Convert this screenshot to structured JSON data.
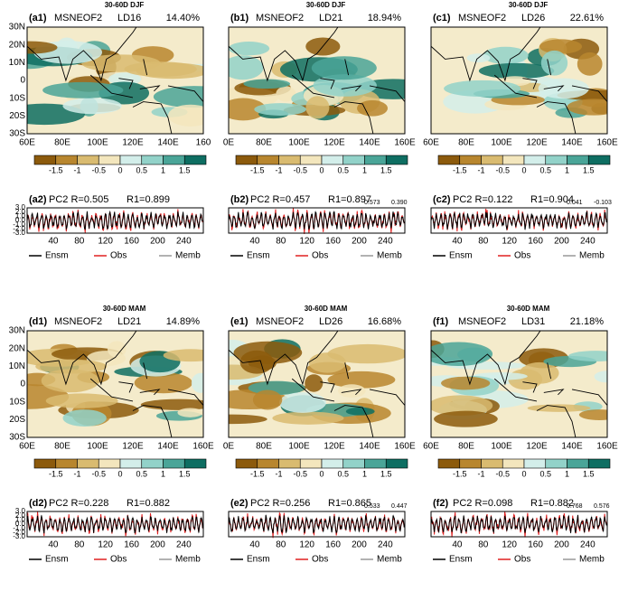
{
  "lat_labels": [
    "30N",
    "20N",
    "10N",
    "0",
    "10S",
    "20S",
    "30S"
  ],
  "colorbar_labels": [
    "-1.5",
    "-1",
    "-0.5",
    "0",
    "0.5",
    "1",
    "1.5"
  ],
  "pc_yticks": [
    "3.0",
    "2.0",
    "1.0",
    "0.0",
    "-1.0",
    "-2.0",
    "-3.0"
  ],
  "pc_xticks": [
    "40",
    "80",
    "120",
    "160",
    "200",
    "240"
  ],
  "legend": [
    "Ensm",
    "Obs",
    "Memb"
  ],
  "panels": [
    {
      "header": "30-60D DJF",
      "map_label": "(a1)",
      "field": "MSNEOF2",
      "lead": "LD16",
      "variance": "14.40%",
      "lon_labels": [
        "60E",
        "80E",
        "100E",
        "120E",
        "140E",
        "160"
      ],
      "pc_label": "(a2)",
      "pc_r": "PC2 R=0.505",
      "pc_r1": "R1=0.899",
      "pc_extra": []
    },
    {
      "header": "30-60D DJF",
      "map_label": "(b1)",
      "field": "MSNEOF2",
      "lead": "LD21",
      "variance": "18.94%",
      "lon_labels": [
        "0E",
        "80E",
        "100E",
        "120E",
        "140E",
        "160E"
      ],
      "pc_label": "(b2)",
      "pc_r": "PC2 R=0.457",
      "pc_r1": "R1=0.897",
      "pc_extra": [
        "0.573",
        "0.390"
      ]
    },
    {
      "header": "30-60D DJF",
      "map_label": "(c1)",
      "field": "MSNEOF2",
      "lead": "LD26",
      "variance": "22.61%",
      "lon_labels": [
        "60E",
        "80E",
        "100E",
        "120E",
        "140E",
        "160E"
      ],
      "pc_label": "(c2)",
      "pc_r": "PC2 R=0.122",
      "pc_r1": "R1=0.904",
      "pc_extra": [
        "0.041",
        "-0.103"
      ]
    },
    {
      "header": "30-60D MAM",
      "map_label": "(d1)",
      "field": "MSNEOF2",
      "lead": "LD21",
      "variance": "14.89%",
      "lon_labels": [
        "60E",
        "80E",
        "100E",
        "120E",
        "140E",
        "160E"
      ],
      "pc_label": "(d2)",
      "pc_r": "PC2 R=0.228",
      "pc_r1": "R1=0.882",
      "pc_extra": []
    },
    {
      "header": "30-60D MAM",
      "map_label": "(e1)",
      "field": "MSNEOF2",
      "lead": "LD26",
      "variance": "16.68%",
      "lon_labels": [
        "0E",
        "80E",
        "100E",
        "120E",
        "140E",
        "160E"
      ],
      "pc_label": "(e2)",
      "pc_r": "PC2 R=0.256",
      "pc_r1": "R1=0.865",
      "pc_extra": [
        "0.533",
        "0.447"
      ]
    },
    {
      "header": "30-60D MAM",
      "map_label": "(f1)",
      "field": "MSNEOF2",
      "lead": "LD31",
      "variance": "21.18%",
      "lon_labels": [
        "60E",
        "80E",
        "100E",
        "120E",
        "140E",
        "160E"
      ],
      "pc_label": "(f2)",
      "pc_r": "PC2 R=0.098",
      "pc_r1": "R1=0.882",
      "pc_extra": [
        "0.768",
        "0.576"
      ]
    }
  ]
}
